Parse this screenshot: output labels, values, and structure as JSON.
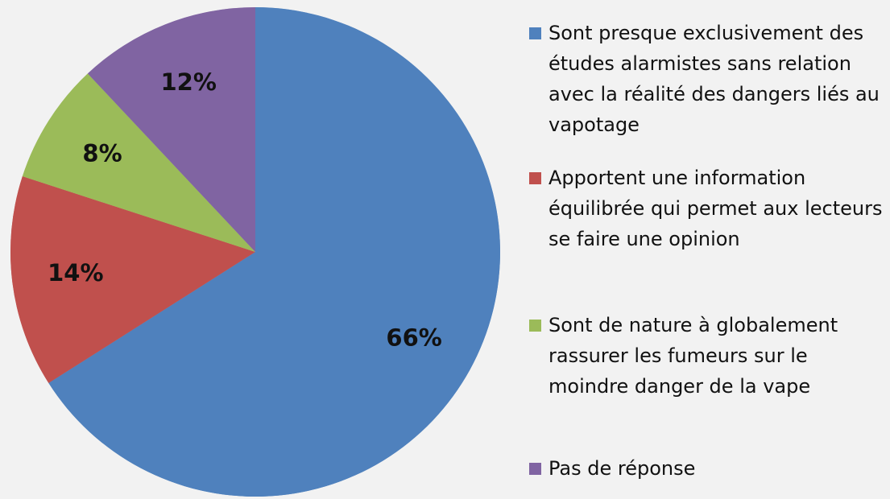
{
  "chart_data": {
    "type": "pie",
    "categories": [
      "Sont presque exclusivement des études alarmistes sans relation avec la réalité des dangers liés au vapotage",
      "Apportent une information équilibrée qui permet aux lecteurs se faire une opinion",
      "Sont de nature à globalement rassurer les fumeurs sur le moindre danger de la vape",
      "Pas de réponse"
    ],
    "values": [
      66,
      14,
      8,
      12
    ],
    "value_labels": [
      "66%",
      "14%",
      "8%",
      "12%"
    ],
    "colors": [
      "#4f81bd",
      "#c0504d",
      "#9bbb59",
      "#8064a2"
    ],
    "legend": "right"
  }
}
